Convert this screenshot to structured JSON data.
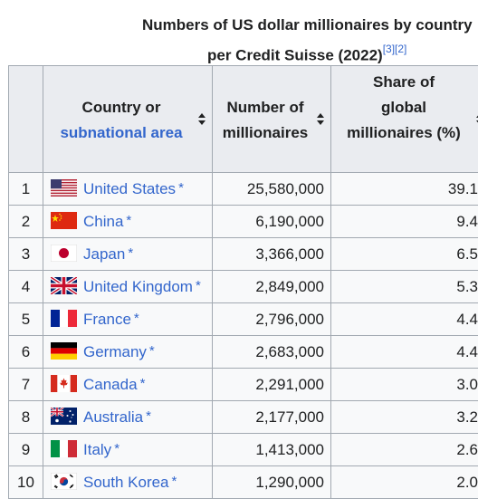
{
  "caption": {
    "line1": "Numbers of US dollar millionaires by country",
    "line2": "per Credit Suisse (2022)",
    "ref1": "[3]",
    "ref2": "[2]"
  },
  "headers": {
    "country_line1": "Country or",
    "country_line2": "subnational area",
    "number_line1": "Number of",
    "number_line2": "millionaires",
    "share_line1": "Share of",
    "share_line2": "global",
    "share_line3": "millionaires (%)"
  },
  "rows": [
    {
      "rank": "1",
      "country": "United States",
      "millionaires": "25,580,000",
      "share": "39.1",
      "flag": "us-flag-icon",
      "star": "*"
    },
    {
      "rank": "2",
      "country": "China",
      "millionaires": "6,190,000",
      "share": "9.4",
      "flag": "china-flag-icon",
      "star": "*"
    },
    {
      "rank": "3",
      "country": "Japan",
      "millionaires": "3,366,000",
      "share": "6.5",
      "flag": "japan-flag-icon",
      "star": "*"
    },
    {
      "rank": "4",
      "country": "United Kingdom",
      "millionaires": "2,849,000",
      "share": "5.3",
      "flag": "uk-flag-icon",
      "star": "*"
    },
    {
      "rank": "5",
      "country": "France",
      "millionaires": "2,796,000",
      "share": "4.4",
      "flag": "france-flag-icon",
      "star": "*"
    },
    {
      "rank": "6",
      "country": "Germany",
      "millionaires": "2,683,000",
      "share": "4.4",
      "flag": "germany-flag-icon",
      "star": "*"
    },
    {
      "rank": "7",
      "country": "Canada",
      "millionaires": "2,291,000",
      "share": "3.0",
      "flag": "canada-flag-icon",
      "star": "*"
    },
    {
      "rank": "8",
      "country": "Australia",
      "millionaires": "2,177,000",
      "share": "3.2",
      "flag": "australia-flag-icon",
      "star": "*"
    },
    {
      "rank": "9",
      "country": "Italy",
      "millionaires": "1,413,000",
      "share": "2.6",
      "flag": "italy-flag-icon",
      "star": "*"
    },
    {
      "rank": "10",
      "country": "South Korea",
      "millionaires": "1,290,000",
      "share": "2.0",
      "flag": "south-korea-flag-icon",
      "star": "*"
    }
  ],
  "colors": {
    "link": "#3366cc",
    "header_bg": "#eaecf0",
    "cell_bg": "#f8f9fa",
    "border": "#a2a9b1"
  }
}
